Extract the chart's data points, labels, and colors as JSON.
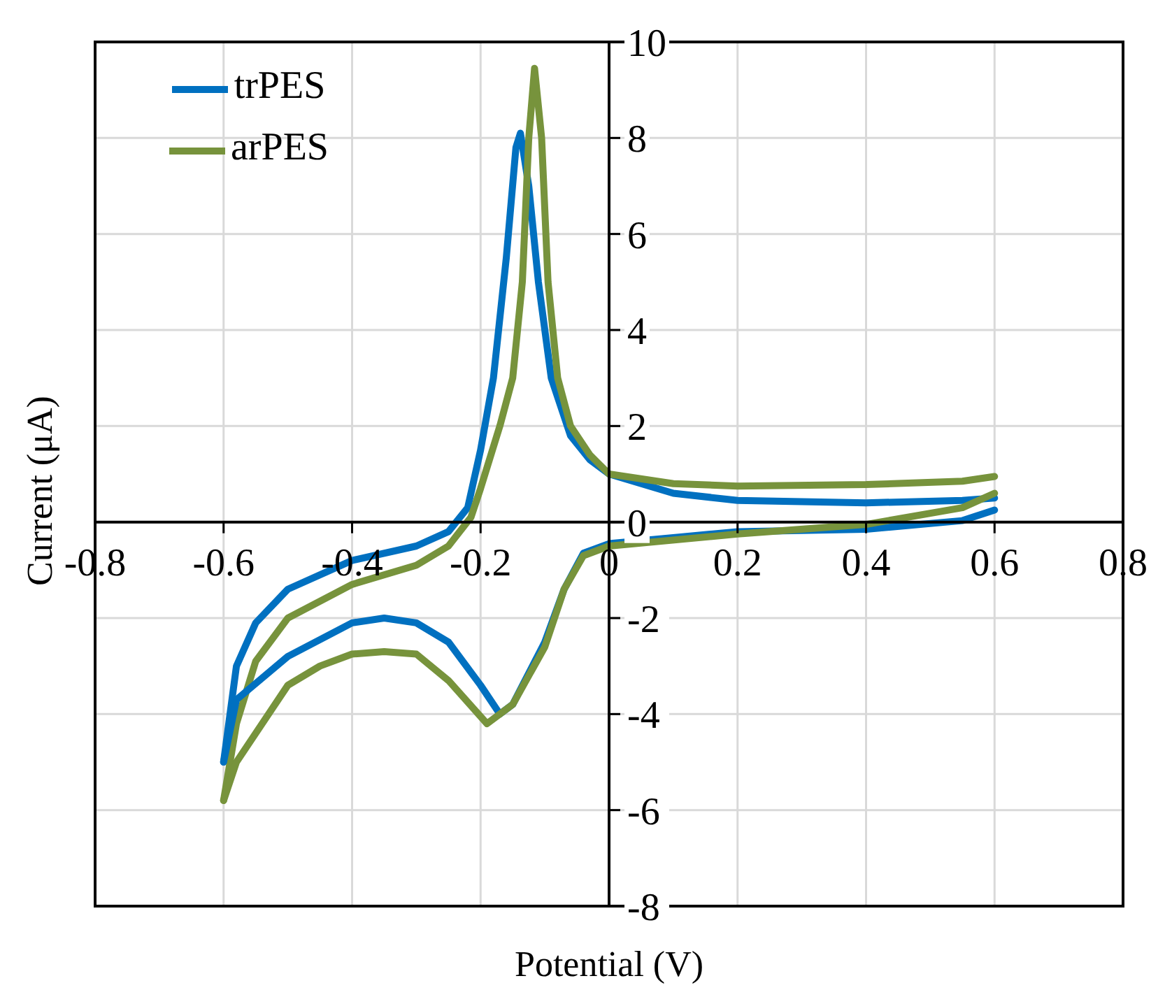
{
  "chart_data": {
    "type": "line",
    "xlabel": "Potential (V)",
    "ylabel": "Current (μA)",
    "xlim": [
      -0.8,
      0.8
    ],
    "xticks": [
      -0.8,
      -0.6,
      -0.4,
      -0.2,
      0,
      0.2,
      0.4,
      0.6,
      0.8
    ],
    "ylim": [
      -8,
      10
    ],
    "yticks": [
      -8,
      -6,
      -4,
      -2,
      0,
      2,
      4,
      6,
      8,
      10
    ],
    "grid": true,
    "legend": "top left",
    "marker": "none",
    "line_style": "solid",
    "series": [
      {
        "name": "trPES",
        "color": "#0070c0",
        "x": [
          0.6,
          0.55,
          0.4,
          0.2,
          0.1,
          0,
          -0.03,
          -0.06,
          -0.09,
          -0.11,
          -0.125,
          -0.138,
          -0.145,
          -0.16,
          -0.18,
          -0.2,
          -0.22,
          -0.25,
          -0.3,
          -0.4,
          -0.5,
          -0.55,
          -0.58,
          -0.6
        ],
        "values": [
          0.5,
          0.45,
          0.4,
          0.45,
          0.6,
          1,
          1.3,
          1.8,
          3,
          5,
          7,
          8.1,
          7.8,
          5.5,
          3,
          1.5,
          0.3,
          -0.2,
          -0.5,
          -0.8,
          -1.4,
          -2.1,
          -3,
          -5
        ]
      },
      {
        "name": "arPES",
        "color": "#77933c",
        "x": [
          0.6,
          0.55,
          0.4,
          0.2,
          0.1,
          0,
          -0.03,
          -0.06,
          -0.08,
          -0.095,
          -0.105,
          -0.116,
          -0.125,
          -0.135,
          -0.15,
          -0.17,
          -0.2,
          -0.215,
          -0.25,
          -0.3,
          -0.4,
          -0.5,
          -0.55,
          -0.58,
          -0.6
        ],
        "values": [
          0.95,
          0.85,
          0.78,
          0.75,
          0.8,
          1,
          1.4,
          2,
          3,
          5,
          8,
          9.45,
          8,
          5,
          3,
          2,
          0.7,
          0.1,
          -0.5,
          -0.9,
          -1.3,
          -2,
          -2.9,
          -4.2,
          -5.8
        ]
      },
      {
        "color": "#0070c0",
        "x": [
          -0.6,
          -0.58,
          -0.5,
          -0.4,
          -0.35,
          -0.3,
          -0.25,
          -0.2,
          -0.17,
          -0.15,
          -0.1,
          -0.07,
          -0.04,
          0,
          0.2,
          0.4,
          0.55,
          0.6
        ],
        "values": [
          -5,
          -3.7,
          -2.8,
          -2.1,
          -2,
          -2.1,
          -2.5,
          -3.4,
          -4,
          -3.8,
          -2.5,
          -1.4,
          -0.65,
          -0.45,
          -0.2,
          -0.15,
          0.03,
          0.25
        ]
      },
      {
        "color": "#77933c",
        "x": [
          -0.6,
          -0.58,
          -0.5,
          -0.45,
          -0.4,
          -0.35,
          -0.3,
          -0.25,
          -0.19,
          -0.15,
          -0.1,
          -0.07,
          -0.04,
          0,
          0.2,
          0.4,
          0.55,
          0.6
        ],
        "values": [
          -5.8,
          -5,
          -3.4,
          -3,
          -2.75,
          -2.7,
          -2.75,
          -3.3,
          -4.2,
          -3.8,
          -2.6,
          -1.4,
          -0.7,
          -0.5,
          -0.25,
          -0.05,
          0.3,
          0.6
        ]
      }
    ]
  }
}
